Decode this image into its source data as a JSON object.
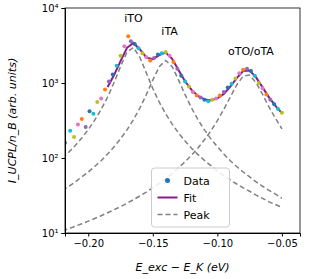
{
  "chart_data": {
    "type": "scatter",
    "x_label": "E_exc − E_K (eV)",
    "y_label": "I_UCPL/n_B (arb. units)",
    "log": "y",
    "legend": "lower center",
    "xlim": [
      -0.218,
      -0.036
    ],
    "ylim": [
      10,
      10000
    ],
    "xticks": [
      {
        "value": -0.2,
        "label": "−0.20"
      },
      {
        "value": -0.15,
        "label": "−0.15"
      },
      {
        "value": -0.1,
        "label": "−0.10"
      },
      {
        "value": -0.05,
        "label": "−0.05"
      }
    ],
    "yticks": [
      {
        "value": 10,
        "label": "10¹"
      },
      {
        "value": 100,
        "label": "10²"
      },
      {
        "value": 1000,
        "label": "10³"
      },
      {
        "value": 10000,
        "label": "10⁴"
      }
    ],
    "annotations": [
      {
        "text": "iTO",
        "x": -0.165,
        "y": 6500
      },
      {
        "text": "iTA",
        "x": -0.137,
        "y": 4400
      },
      {
        "text": "oTO/oTA",
        "x": -0.074,
        "y": 2350
      }
    ],
    "series": [
      {
        "name": "Data",
        "type": "scatter",
        "marker": "circle",
        "x": [
          -0.218,
          -0.214,
          -0.211,
          -0.208,
          -0.205,
          -0.202,
          -0.199,
          -0.196,
          -0.193,
          -0.19,
          -0.187,
          -0.184,
          -0.181,
          -0.178,
          -0.175,
          -0.172,
          -0.169,
          -0.167,
          -0.164,
          -0.161,
          -0.158,
          -0.155,
          -0.152,
          -0.149,
          -0.146,
          -0.143,
          -0.14,
          -0.137,
          -0.134,
          -0.131,
          -0.128,
          -0.125,
          -0.122,
          -0.119,
          -0.116,
          -0.113,
          -0.11,
          -0.107,
          -0.104,
          -0.101,
          -0.098,
          -0.095,
          -0.092,
          -0.089,
          -0.086,
          -0.083,
          -0.08,
          -0.077,
          -0.074,
          -0.071,
          -0.068,
          -0.065,
          -0.062,
          -0.059,
          -0.056,
          -0.053,
          -0.05
        ],
        "values": [
          160,
          230,
          190,
          280,
          330,
          260,
          420,
          390,
          560,
          620,
          820,
          1050,
          1300,
          1700,
          2300,
          3100,
          4200,
          3600,
          3300,
          2900,
          2500,
          2200,
          2000,
          2150,
          2400,
          2500,
          2600,
          2300,
          1900,
          1550,
          1250,
          1050,
          900,
          760,
          680,
          640,
          600,
          570,
          600,
          620,
          680,
          760,
          870,
          980,
          1150,
          1350,
          1500,
          1550,
          1450,
          1250,
          1000,
          850,
          700,
          600,
          520,
          450,
          400
        ],
        "colors": [
          "#1f77b4",
          "#17becf",
          "#bcbd22",
          "#e377c2",
          "#ff7f0e",
          "#9467bd",
          "#1f77b4",
          "#17becf",
          "#bcbd22",
          "#e377c2",
          "#ff7f0e",
          "#9467bd",
          "#1f77b4",
          "#17becf",
          "#bcbd22",
          "#e377c2",
          "#ff7f0e",
          "#9467bd",
          "#1f77b4",
          "#17becf",
          "#bcbd22",
          "#e377c2",
          "#ff7f0e",
          "#9467bd",
          "#1f77b4",
          "#17becf",
          "#bcbd22",
          "#e377c2",
          "#ff7f0e",
          "#9467bd",
          "#1f77b4",
          "#17becf",
          "#bcbd22",
          "#e377c2",
          "#ff7f0e",
          "#9467bd",
          "#1f77b4",
          "#17becf",
          "#bcbd22",
          "#e377c2",
          "#ff7f0e",
          "#9467bd",
          "#1f77b4",
          "#17becf",
          "#bcbd22",
          "#e377c2",
          "#ff7f0e",
          "#9467bd",
          "#1f77b4",
          "#17becf",
          "#bcbd22",
          "#e377c2",
          "#ff7f0e",
          "#9467bd",
          "#1f77b4",
          "#17becf",
          "#bcbd22"
        ]
      },
      {
        "name": "Fit",
        "type": "line",
        "color": "#8b1a8b",
        "line_style": "solid",
        "x": [
          -0.185,
          -0.18,
          -0.175,
          -0.17,
          -0.165,
          -0.16,
          -0.155,
          -0.15,
          -0.145,
          -0.14,
          -0.135,
          -0.13,
          -0.125,
          -0.12,
          -0.115,
          -0.11,
          -0.105,
          -0.1,
          -0.095,
          -0.09,
          -0.085,
          -0.08,
          -0.075,
          -0.07,
          -0.065,
          -0.06,
          -0.055,
          -0.05
        ],
        "values": [
          883,
          1275,
          1960,
          2948,
          3422,
          2801,
          2191,
          2076,
          2354,
          2540,
          2098,
          1482,
          1056,
          808,
          671,
          605,
          589,
          623,
          716,
          893,
          1164,
          1443,
          1466,
          1188,
          874,
          643,
          494,
          396
        ]
      },
      {
        "name": "Peak",
        "type": "line",
        "color": "#808080",
        "line_style": "dashed",
        "x": [
          -0.22,
          -0.215,
          -0.21,
          -0.205,
          -0.2,
          -0.195,
          -0.19,
          -0.185,
          -0.18,
          -0.175,
          -0.17,
          -0.165,
          -0.16,
          -0.155,
          -0.15,
          -0.145,
          -0.14,
          -0.135,
          -0.13,
          -0.125,
          -0.12,
          -0.115,
          -0.11,
          -0.105,
          -0.1,
          -0.095,
          -0.09,
          -0.085,
          -0.08,
          -0.075,
          -0.07,
          -0.065,
          -0.06,
          -0.055,
          -0.05
        ],
        "values": [
          99.5,
          120,
          147,
          185,
          239,
          319,
          444,
          651,
          1014,
          1657,
          2586,
          2970,
          2206,
          1357,
          843,
          555,
          387,
          283,
          215,
          168,
          135,
          111,
          93,
          79,
          67,
          58,
          51,
          45,
          40,
          36,
          32,
          29,
          26,
          24,
          22
        ]
      },
      {
        "type": "line",
        "color": "#808080",
        "line_style": "dashed",
        "x": [
          -0.22,
          -0.215,
          -0.21,
          -0.205,
          -0.2,
          -0.195,
          -0.19,
          -0.185,
          -0.18,
          -0.175,
          -0.17,
          -0.165,
          -0.16,
          -0.155,
          -0.15,
          -0.145,
          -0.14,
          -0.135,
          -0.13,
          -0.125,
          -0.12,
          -0.115,
          -0.11,
          -0.105,
          -0.1,
          -0.095,
          -0.09,
          -0.085,
          -0.08,
          -0.075,
          -0.07,
          -0.065,
          -0.06,
          -0.055,
          -0.05
        ],
        "values": [
          37,
          42,
          48,
          56,
          65,
          77,
          92,
          113,
          141,
          180,
          237,
          324,
          464,
          699,
          1093,
          1653,
          2000,
          1653,
          1093,
          699,
          464,
          324,
          237,
          180,
          141,
          113,
          92,
          77,
          65,
          56,
          48,
          42,
          37,
          33,
          29
        ]
      },
      {
        "type": "line",
        "color": "#808080",
        "line_style": "dashed",
        "x": [
          -0.22,
          -0.215,
          -0.21,
          -0.205,
          -0.2,
          -0.195,
          -0.19,
          -0.185,
          -0.18,
          -0.175,
          -0.17,
          -0.165,
          -0.16,
          -0.155,
          -0.15,
          -0.145,
          -0.14,
          -0.135,
          -0.13,
          -0.125,
          -0.12,
          -0.115,
          -0.11,
          -0.105,
          -0.1,
          -0.095,
          -0.09,
          -0.085,
          -0.08,
          -0.075,
          -0.07,
          -0.065,
          -0.06,
          -0.055,
          -0.05
        ],
        "values": [
          10.7,
          11.4,
          12.3,
          13.3,
          14.4,
          15.6,
          17.0,
          18.6,
          20.4,
          22.5,
          24.9,
          27.8,
          31.2,
          35.1,
          40,
          45.8,
          53,
          62,
          74,
          89,
          109,
          136,
          175,
          230,
          315,
          445,
          650,
          942,
          1238,
          1274,
          1008,
          703,
          480,
          337,
          245
        ]
      }
    ]
  }
}
